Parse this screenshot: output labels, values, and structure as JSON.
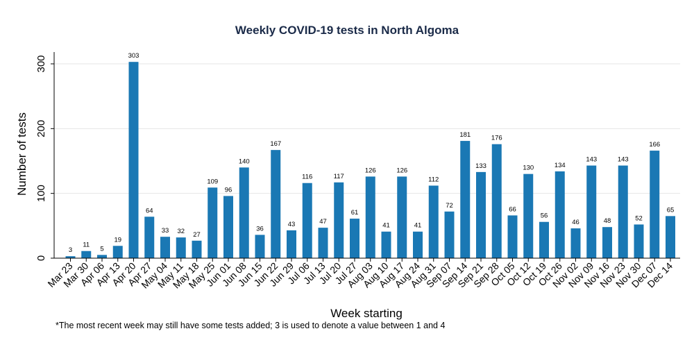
{
  "chart_data": {
    "type": "bar",
    "title": "Weekly COVID-19 tests in North Algoma",
    "xlabel": "Week starting",
    "ylabel": "Number of tests",
    "ylim": [
      0,
      300
    ],
    "yticks": [
      0,
      100,
      200,
      300
    ],
    "grid": true,
    "categories": [
      "Mar 23",
      "Mar 30",
      "Apr 06",
      "Apr 13",
      "Apr 20",
      "Apr 27",
      "May 04",
      "May 11",
      "May 18",
      "May 25",
      "Jun 01",
      "Jun 08",
      "Jun 15",
      "Jun 22",
      "Jun 29",
      "Jul 06",
      "Jul 13",
      "Jul 20",
      "Jul 27",
      "Aug 03",
      "Aug 10",
      "Aug 17",
      "Aug 24",
      "Aug 31",
      "Sep 07",
      "Sep 14",
      "Sep 21",
      "Sep 28",
      "Oct 05",
      "Oct 12",
      "Oct 19",
      "Oct 26",
      "Nov 02",
      "Nov 09",
      "Nov 16",
      "Nov 23",
      "Nov 30",
      "Dec 07",
      "Dec 14"
    ],
    "values": [
      3,
      11,
      5,
      19,
      303,
      64,
      33,
      32,
      27,
      109,
      96,
      140,
      36,
      167,
      43,
      116,
      47,
      117,
      61,
      126,
      41,
      126,
      41,
      112,
      72,
      181,
      133,
      176,
      66,
      130,
      56,
      134,
      46,
      143,
      48,
      143,
      52,
      166,
      65
    ],
    "bar_color": "#1a78b4",
    "footnote": "*The most recent week may still have some tests added; 3 is used to denote a value between 1 and 4"
  }
}
